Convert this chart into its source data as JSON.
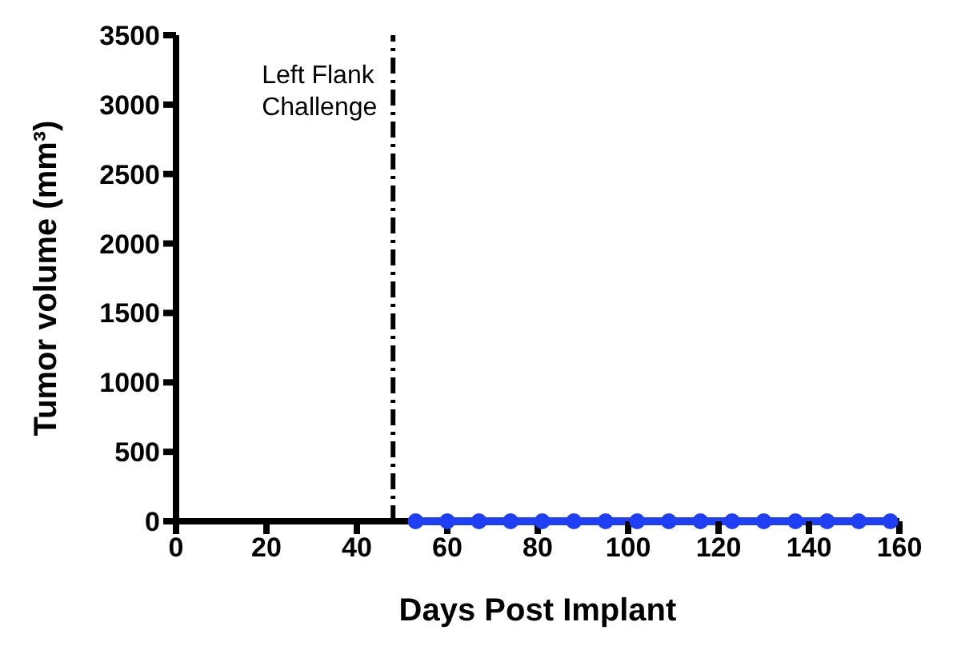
{
  "chart_data": {
    "type": "line",
    "xlabel": "Days Post Implant",
    "ylabel": "Tumor volume (mm³)",
    "x": [
      53,
      60,
      67,
      74,
      81,
      88,
      95,
      102,
      109,
      116,
      123,
      130,
      137,
      144,
      151,
      158
    ],
    "series": [
      {
        "color": "#1f3ff5",
        "values": [
          0,
          0,
          0,
          0,
          0,
          0,
          0,
          0,
          0,
          0,
          0,
          0,
          0,
          0,
          0,
          0
        ]
      }
    ],
    "xlim": [
      0,
      160
    ],
    "xticks": [
      0,
      20,
      40,
      60,
      80,
      100,
      120,
      140,
      160
    ],
    "ylim": [
      0,
      3500
    ],
    "yticks": [
      0,
      500,
      1000,
      1500,
      2000,
      2500,
      3000,
      3500
    ],
    "ref_lines": [
      {
        "axis": "x",
        "value": 48,
        "label": "Left Flank Challenge",
        "color": "#000000",
        "line_style": "dashed"
      }
    ],
    "marker": "circle",
    "grid": false,
    "legend": false
  }
}
